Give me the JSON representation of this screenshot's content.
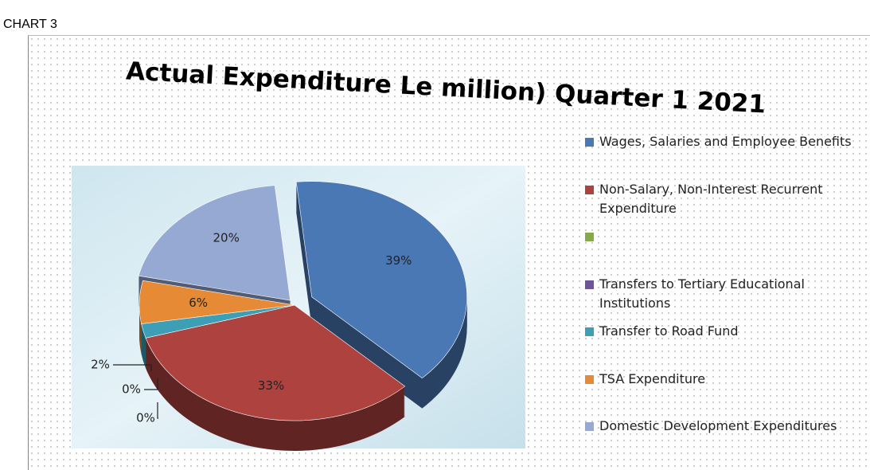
{
  "sheet_label": "CHART 3",
  "chart_data": {
    "type": "pie",
    "title": "Actual Expenditure Le million) Quarter 1 2021",
    "categories": [
      "Wages, Salaries and Employee Benefits",
      "Non-Salary, Non-Interest Recurrent Expenditure",
      null,
      "Transfers to Tertiary Educational Institutions",
      "Transfer to Road Fund",
      "TSA Expenditure",
      "Domestic Development Expenditures"
    ],
    "values": [
      39,
      33,
      0,
      0,
      2,
      6,
      20
    ],
    "value_labels": [
      "39%",
      "33%",
      "0%",
      "0%",
      "2%",
      "6%",
      "20%"
    ],
    "colors": [
      "#4a78b5",
      "#ae423f",
      "#88a949",
      "#6e5597",
      "#3c9fb6",
      "#e68a36",
      "#95a9d3"
    ],
    "legend": "right"
  }
}
